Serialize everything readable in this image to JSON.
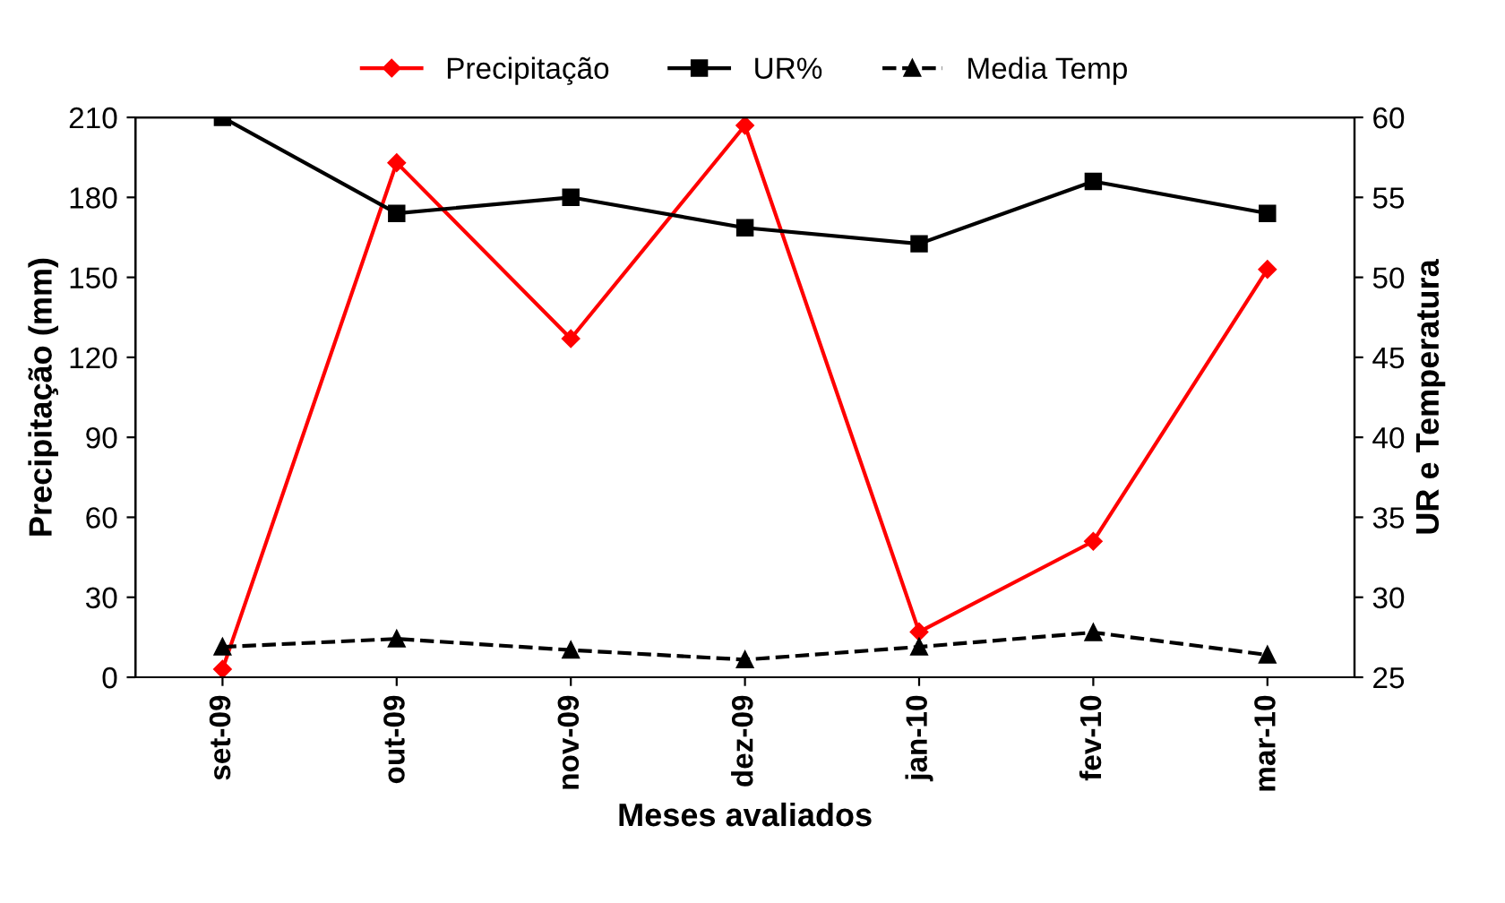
{
  "chart_data": {
    "type": "line",
    "xlabel": "Meses avaliados",
    "ylabel": "Precipitação (mm)",
    "y2label": "UR e Temperatura",
    "categories": [
      "set-09",
      "out-09",
      "nov-09",
      "dez-09",
      "jan-10",
      "fev-10",
      "mar-10"
    ],
    "series": [
      {
        "name": "Precipitação",
        "color": "#ff0000",
        "marker": "diamond",
        "line_style": "solid",
        "values": [
          3,
          193,
          127,
          207,
          17,
          51,
          153
        ]
      },
      {
        "name": "UR%",
        "color": "#000000",
        "marker": "square",
        "line_style": "solid",
        "axis": "y2",
        "values": [
          60,
          54,
          55,
          53.1,
          52.1,
          56,
          54
        ]
      },
      {
        "name": "Media Temp",
        "color": "#000000",
        "marker": "triangle",
        "line_style": "dashed",
        "axis": "y2",
        "values": [
          26.9,
          27.4,
          26.7,
          26.1,
          26.9,
          27.8,
          26.4
        ]
      }
    ],
    "ylim": [
      0,
      210
    ],
    "yticks": [
      0,
      30,
      60,
      90,
      120,
      150,
      180,
      210
    ],
    "y2lim": [
      25,
      60
    ],
    "y2ticks": [
      25,
      30,
      35,
      40,
      45,
      50,
      55,
      60
    ],
    "grid": false,
    "legend": "top"
  }
}
